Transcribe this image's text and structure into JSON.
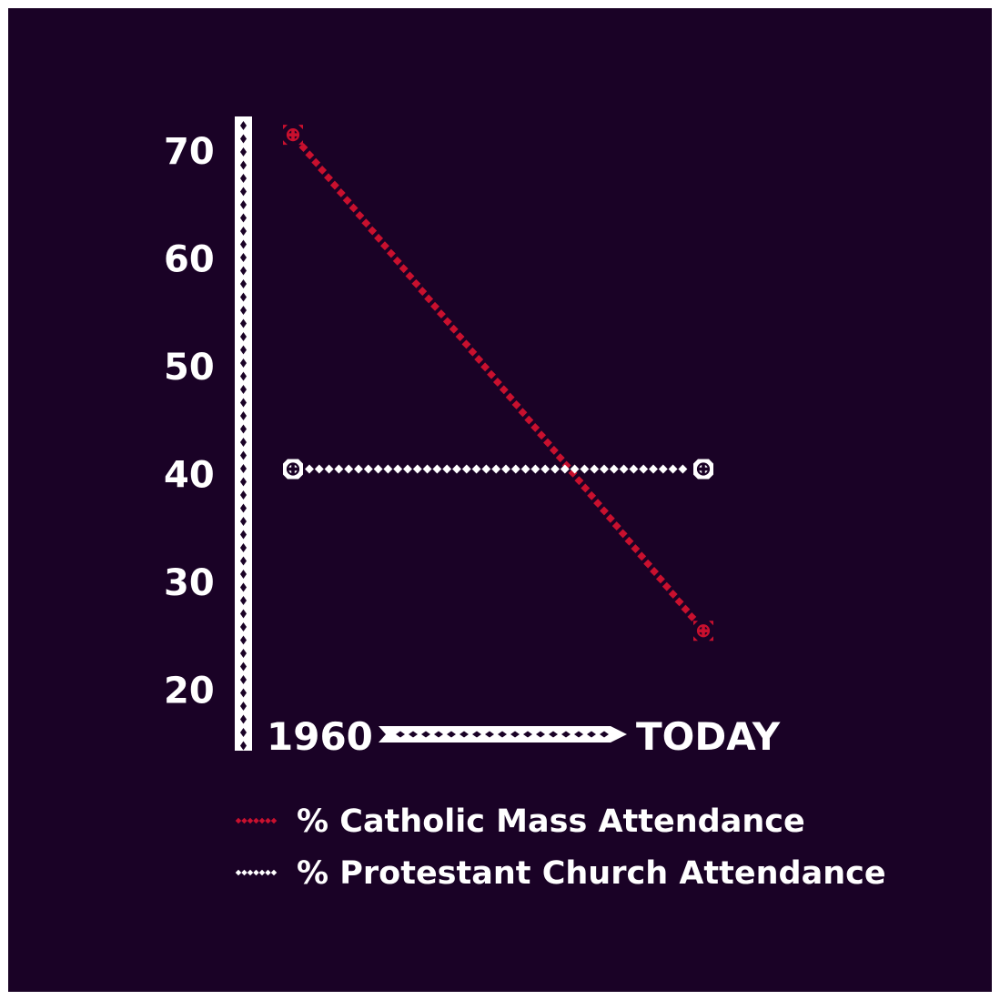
{
  "colors": {
    "background": "#1a0226",
    "frame": "#ffffff",
    "axis": "#ffffff",
    "catholic": "#c8102e",
    "protestant": "#ffffff"
  },
  "chart_data": {
    "type": "line",
    "x_start_label": "1960",
    "x_end_label": "TODAY",
    "x": [
      "1960",
      "TODAY"
    ],
    "ylim": [
      15,
      73
    ],
    "yticks": [
      "70",
      "60",
      "50",
      "40",
      "30",
      "20"
    ],
    "grid": false,
    "legend_position": "bottom-left",
    "series": [
      {
        "name": "% Catholic Mass Attendance",
        "values": [
          71,
          25
        ],
        "color": "#c8102e",
        "marker": "cross-ornament-icon"
      },
      {
        "name": "% Protestant Church Attendance",
        "values": [
          40,
          40
        ],
        "color": "#ffffff",
        "marker": "cross-ornament-icon"
      }
    ]
  }
}
